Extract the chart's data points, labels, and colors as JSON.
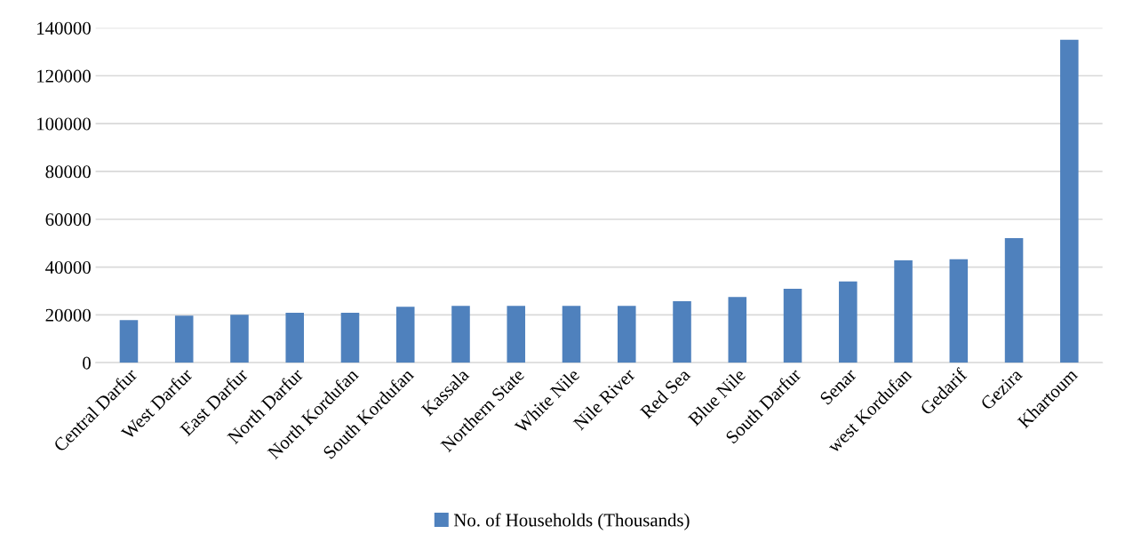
{
  "chart_data": {
    "type": "bar",
    "categories": [
      "Central Darfur",
      "West Darfur",
      "East Darfur",
      "North Darfur",
      "North Kordufan",
      "South Kordufan",
      "Kassala",
      "Northern State",
      "White Nile",
      "Nile River",
      "Red Sea",
      "Blue Nile",
      "South Darfur",
      "Senar",
      "west Kordufan",
      "Gedarif",
      "Gezira",
      "Khartoum"
    ],
    "series": [
      {
        "name": "No. of Households (Thousands)",
        "color": "#4f81bd",
        "values": [
          17800,
          19700,
          20000,
          20900,
          20900,
          23400,
          23800,
          23800,
          23800,
          23800,
          25700,
          27500,
          30900,
          34000,
          42800,
          43300,
          52100,
          135000
        ]
      }
    ],
    "ylim": [
      0,
      140000
    ],
    "yticks": [
      0,
      20000,
      40000,
      60000,
      80000,
      100000,
      120000,
      140000
    ],
    "grid": "y",
    "legend": "bottom"
  }
}
